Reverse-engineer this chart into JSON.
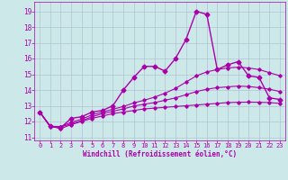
{
  "title": "",
  "xlabel": "Windchill (Refroidissement éolien,°C)",
  "ylabel": "",
  "bg_color": "#cce8e8",
  "line_color": "#aa00aa",
  "grid_color": "#aabbcc",
  "x_ticks": [
    0,
    1,
    2,
    3,
    4,
    5,
    6,
    7,
    8,
    9,
    10,
    11,
    12,
    13,
    14,
    15,
    16,
    17,
    18,
    19,
    20,
    21,
    22,
    23
  ],
  "y_ticks": [
    11,
    12,
    13,
    14,
    15,
    16,
    17,
    18,
    19
  ],
  "xlim": [
    -0.5,
    23.5
  ],
  "ylim": [
    10.8,
    19.6
  ],
  "series": [
    {
      "x": [
        0,
        1,
        2,
        3,
        4,
        5,
        6,
        7,
        8,
        9,
        10,
        11,
        12,
        13,
        14,
        15,
        16,
        17,
        18,
        19,
        20,
        21,
        22,
        23
      ],
      "y": [
        12.6,
        11.7,
        11.6,
        12.2,
        12.3,
        12.6,
        12.7,
        13.0,
        14.0,
        14.8,
        15.5,
        15.5,
        15.2,
        16.0,
        17.2,
        19.0,
        18.8,
        15.3,
        15.6,
        15.8,
        14.9,
        14.8,
        13.5,
        13.4
      ],
      "marker": "D",
      "markersize": 2.5,
      "linewidth": 1.0
    },
    {
      "x": [
        0,
        1,
        2,
        3,
        4,
        5,
        6,
        7,
        8,
        9,
        10,
        11,
        12,
        13,
        14,
        15,
        16,
        17,
        18,
        19,
        20,
        21,
        22,
        23
      ],
      "y": [
        12.6,
        11.7,
        11.55,
        11.8,
        12.0,
        12.2,
        12.35,
        12.5,
        12.6,
        12.7,
        12.8,
        12.85,
        12.9,
        12.95,
        13.0,
        13.05,
        13.1,
        13.15,
        13.2,
        13.22,
        13.23,
        13.22,
        13.2,
        13.15
      ],
      "marker": "D",
      "markersize": 1.8,
      "linewidth": 0.8
    },
    {
      "x": [
        0,
        1,
        2,
        3,
        4,
        5,
        6,
        7,
        8,
        9,
        10,
        11,
        12,
        13,
        14,
        15,
        16,
        17,
        18,
        19,
        20,
        21,
        22,
        23
      ],
      "y": [
        12.6,
        11.65,
        11.65,
        11.85,
        12.05,
        12.3,
        12.5,
        12.65,
        12.8,
        12.98,
        13.1,
        13.2,
        13.35,
        13.5,
        13.7,
        13.9,
        14.05,
        14.15,
        14.2,
        14.25,
        14.22,
        14.15,
        14.05,
        13.9
      ],
      "marker": "D",
      "markersize": 1.8,
      "linewidth": 0.8
    },
    {
      "x": [
        0,
        1,
        2,
        3,
        4,
        5,
        6,
        7,
        8,
        9,
        10,
        11,
        12,
        13,
        14,
        15,
        16,
        17,
        18,
        19,
        20,
        21,
        22,
        23
      ],
      "y": [
        12.6,
        11.7,
        11.68,
        11.95,
        12.15,
        12.42,
        12.6,
        12.78,
        12.95,
        13.18,
        13.35,
        13.55,
        13.8,
        14.1,
        14.5,
        14.9,
        15.15,
        15.3,
        15.4,
        15.45,
        15.4,
        15.3,
        15.1,
        14.9
      ],
      "marker": "D",
      "markersize": 1.8,
      "linewidth": 0.8
    }
  ]
}
